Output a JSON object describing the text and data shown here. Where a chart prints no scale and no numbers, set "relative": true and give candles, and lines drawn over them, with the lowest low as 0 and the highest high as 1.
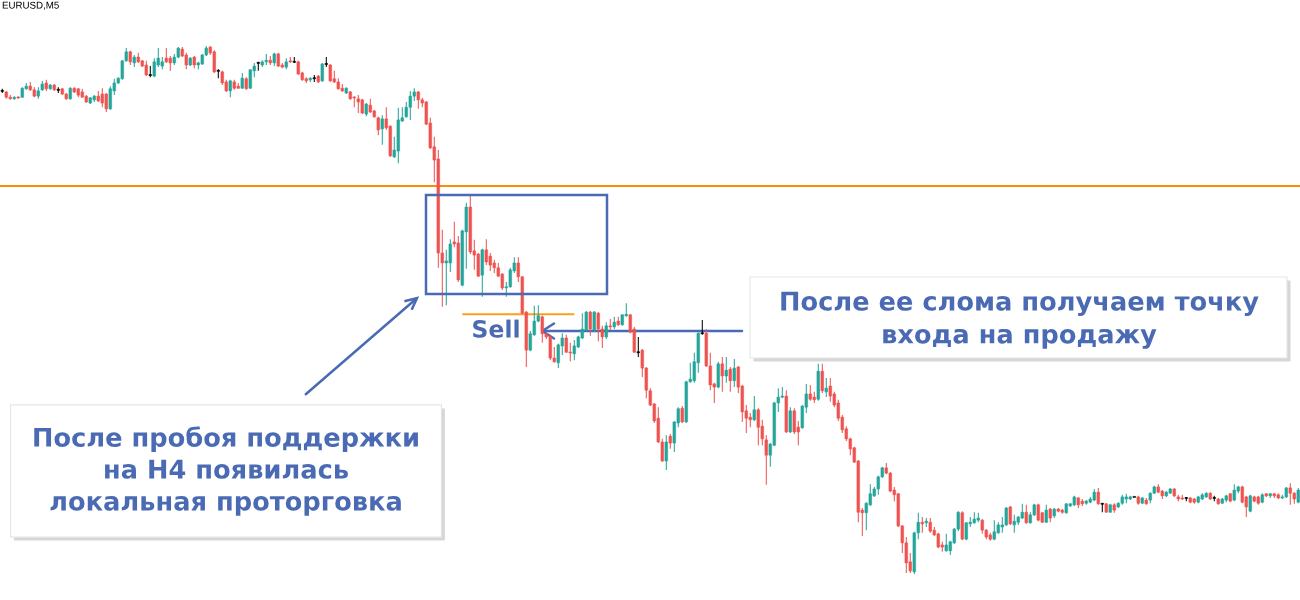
{
  "chart_data": {
    "type": "candlestick",
    "title": "EURUSD,M5",
    "relative": true,
    "categories": [
      null,
      null,
      null,
      null,
      null,
      null,
      null,
      null,
      null,
      null,
      null,
      null,
      null,
      null,
      null,
      null,
      null,
      null,
      null,
      null,
      null,
      null,
      null,
      null,
      null,
      null,
      null,
      null,
      null,
      null,
      null,
      null,
      null,
      null,
      null,
      null,
      null,
      null,
      null,
      null,
      null,
      null,
      null,
      null,
      null,
      null,
      null,
      null,
      null,
      null,
      null,
      null,
      null,
      null,
      null,
      null,
      null,
      null,
      null,
      null,
      null,
      null,
      null,
      null,
      null,
      null,
      null,
      null,
      null,
      null,
      null,
      null,
      null,
      null,
      null,
      null,
      null,
      null,
      null,
      null,
      null,
      null,
      null,
      null,
      null,
      null,
      null,
      null,
      null,
      null,
      null,
      null,
      null,
      null,
      null,
      null,
      null,
      null,
      null,
      null,
      null,
      null,
      null,
      null,
      null,
      null,
      null,
      null,
      null,
      null,
      null,
      null,
      null,
      null,
      null,
      null,
      null,
      null,
      null,
      null,
      null,
      null,
      null,
      null,
      null,
      null,
      null,
      null,
      null,
      null,
      null,
      null,
      null,
      null,
      null,
      null,
      null,
      null,
      null,
      null,
      null,
      null,
      null,
      null,
      null,
      null,
      null,
      null,
      null,
      null,
      null,
      null,
      null,
      null,
      null,
      null,
      null,
      null,
      null,
      null,
      null,
      null,
      null,
      null,
      null,
      null,
      null,
      null,
      null,
      null,
      null,
      null,
      null,
      null,
      null,
      null,
      null,
      null,
      null,
      null,
      null,
      null,
      null,
      null,
      null,
      null,
      null,
      null,
      null,
      null,
      null,
      null,
      null,
      null,
      null,
      null,
      null,
      null,
      null,
      null,
      null,
      null,
      null,
      null,
      null,
      null,
      null,
      null,
      null,
      null,
      null,
      null,
      null,
      null,
      null,
      null,
      null,
      null,
      null,
      null,
      null,
      null,
      null,
      null,
      null,
      null,
      null,
      null,
      null,
      null,
      null,
      null,
      null,
      null,
      null,
      null,
      null,
      null,
      null,
      null,
      null,
      null,
      null,
      null,
      null,
      null,
      null,
      null,
      null,
      null,
      null,
      null,
      null,
      null,
      null,
      null,
      null,
      null,
      null,
      null,
      null,
      null,
      null,
      null,
      null,
      null,
      null,
      null,
      null,
      null,
      null,
      null,
      null,
      null,
      null,
      null,
      null,
      null,
      null,
      null,
      null,
      null,
      null,
      null,
      null,
      null,
      null,
      null,
      null,
      null,
      null,
      null,
      null,
      null,
      null,
      null,
      null,
      null,
      null,
      null,
      null,
      null,
      null,
      null,
      null,
      null,
      null,
      null,
      null,
      null,
      null,
      null,
      null,
      null,
      null,
      null,
      null,
      null,
      null,
      null,
      null,
      null,
      null,
      null,
      null
    ],
    "ohlc": [
      [
        0.915,
        0.919,
        0.911,
        0.915
      ],
      [
        0.913,
        0.915,
        0.9,
        0.903
      ],
      [
        0.903,
        0.907,
        0.898,
        0.9
      ],
      [
        0.9,
        0.905,
        0.898,
        0.903
      ],
      [
        0.903,
        0.905,
        0.9,
        0.902
      ],
      [
        0.903,
        0.922,
        0.902,
        0.92
      ],
      [
        0.919,
        0.93,
        0.917,
        0.924
      ],
      [
        0.924,
        0.932,
        0.915,
        0.917
      ],
      [
        0.917,
        0.922,
        0.903,
        0.905
      ],
      [
        0.905,
        0.922,
        0.9,
        0.915
      ],
      [
        0.917,
        0.934,
        0.915,
        0.928
      ],
      [
        0.93,
        0.936,
        0.915,
        0.919
      ],
      [
        0.919,
        0.928,
        0.917,
        0.926
      ],
      [
        0.926,
        0.928,
        0.915,
        0.917
      ],
      [
        0.917,
        0.922,
        0.911,
        0.917
      ],
      [
        0.919,
        0.92,
        0.907,
        0.909
      ],
      [
        0.909,
        0.911,
        0.898,
        0.9
      ],
      [
        0.9,
        0.922,
        0.898,
        0.92
      ],
      [
        0.92,
        0.922,
        0.911,
        0.913
      ],
      [
        0.919,
        0.92,
        0.903,
        0.907
      ],
      [
        0.913,
        0.919,
        0.902,
        0.903
      ],
      [
        0.905,
        0.907,
        0.892,
        0.894
      ],
      [
        0.892,
        0.903,
        0.89,
        0.902
      ],
      [
        0.898,
        0.907,
        0.894,
        0.905
      ],
      [
        0.905,
        0.915,
        0.894,
        0.896
      ],
      [
        0.909,
        0.92,
        0.884,
        0.892
      ],
      [
        0.909,
        0.911,
        0.875,
        0.881
      ],
      [
        0.881,
        0.924,
        0.879,
        0.919
      ],
      [
        0.915,
        0.938,
        0.907,
        0.93
      ],
      [
        0.93,
        0.941,
        0.928,
        0.939
      ],
      [
        0.938,
        0.973,
        0.936,
        0.972
      ],
      [
        0.972,
        0.996,
        0.97,
        0.989
      ],
      [
        0.989,
        0.991,
        0.964,
        0.97
      ],
      [
        0.968,
        0.983,
        0.96,
        0.979
      ],
      [
        0.979,
        0.987,
        0.968,
        0.97
      ],
      [
        0.972,
        0.973,
        0.96,
        0.962
      ],
      [
        0.964,
        0.972,
        0.943,
        0.945
      ],
      [
        0.945,
        0.962,
        0.941,
        0.945
      ],
      [
        0.943,
        0.977,
        0.941,
        0.97
      ],
      [
        0.964,
        0.996,
        0.96,
        0.977
      ],
      [
        0.962,
        0.979,
        0.956,
        0.97
      ],
      [
        0.977,
        0.996,
        0.968,
        0.97
      ],
      [
        0.977,
        0.981,
        0.953,
        0.968
      ],
      [
        0.968,
        0.985,
        0.964,
        0.979
      ],
      [
        0.979,
        0.998,
        0.977,
        0.996
      ],
      [
        0.994,
        0.998,
        0.979,
        0.981
      ],
      [
        0.983,
        0.987,
        0.956,
        0.964
      ],
      [
        0.964,
        0.979,
        0.962,
        0.977
      ],
      [
        0.979,
        0.981,
        0.958,
        0.964
      ],
      [
        0.964,
        0.97,
        0.956,
        0.968
      ],
      [
        0.966,
        0.985,
        0.964,
        0.983
      ],
      [
        0.983,
        1.0,
        0.981,
        0.996
      ],
      [
        0.998,
        1.0,
        0.983,
        0.987
      ],
      [
        0.989,
        0.992,
        0.949,
        0.951
      ],
      [
        0.953,
        0.956,
        0.939,
        0.953
      ],
      [
        0.951,
        0.953,
        0.926,
        0.93
      ],
      [
        0.932,
        0.936,
        0.913,
        0.915
      ],
      [
        0.915,
        0.936,
        0.903,
        0.934
      ],
      [
        0.932,
        0.936,
        0.917,
        0.92
      ],
      [
        0.924,
        0.93,
        0.919,
        0.92
      ],
      [
        0.92,
        0.949,
        0.919,
        0.939
      ],
      [
        0.938,
        0.941,
        0.917,
        0.919
      ],
      [
        0.92,
        0.956,
        0.919,
        0.955
      ],
      [
        0.953,
        0.968,
        0.941,
        0.962
      ],
      [
        0.968,
        0.97,
        0.953,
        0.968
      ],
      [
        0.964,
        0.973,
        0.96,
        0.97
      ],
      [
        0.97,
        0.985,
        0.964,
        0.973
      ],
      [
        0.973,
        0.981,
        0.964,
        0.968
      ],
      [
        0.968,
        0.987,
        0.962,
        0.985
      ],
      [
        0.985,
        0.987,
        0.96,
        0.962
      ],
      [
        0.964,
        0.968,
        0.958,
        0.96
      ],
      [
        0.96,
        0.977,
        0.956,
        0.97
      ],
      [
        0.972,
        0.979,
        0.968,
        0.97
      ],
      [
        0.97,
        0.979,
        0.968,
        0.97
      ],
      [
        0.97,
        0.972,
        0.945,
        0.947
      ],
      [
        0.949,
        0.951,
        0.934,
        0.936
      ],
      [
        0.938,
        0.941,
        0.93,
        0.934
      ],
      [
        0.936,
        0.941,
        0.932,
        0.939
      ],
      [
        0.939,
        0.945,
        0.932,
        0.939
      ],
      [
        0.943,
        0.945,
        0.93,
        0.932
      ],
      [
        0.934,
        0.968,
        0.932,
        0.966
      ],
      [
        0.966,
        0.979,
        0.96,
        0.966
      ],
      [
        0.964,
        0.966,
        0.932,
        0.934
      ],
      [
        0.938,
        0.953,
        0.93,
        0.932
      ],
      [
        0.932,
        0.939,
        0.917,
        0.919
      ],
      [
        0.92,
        0.928,
        0.913,
        0.915
      ],
      [
        0.911,
        0.922,
        0.909,
        0.92
      ],
      [
        0.913,
        0.915,
        0.898,
        0.9
      ],
      [
        0.903,
        0.905,
        0.884,
        0.902
      ],
      [
        0.9,
        0.907,
        0.873,
        0.894
      ],
      [
        0.898,
        0.9,
        0.871,
        0.873
      ],
      [
        0.871,
        0.892,
        0.867,
        0.89
      ],
      [
        0.888,
        0.9,
        0.873,
        0.875
      ],
      [
        0.877,
        0.879,
        0.864,
        0.866
      ],
      [
        0.864,
        0.866,
        0.831,
        0.841
      ],
      [
        0.843,
        0.869,
        0.813,
        0.862
      ],
      [
        0.862,
        0.884,
        0.841,
        0.845
      ],
      [
        0.848,
        0.85,
        0.79,
        0.792
      ],
      [
        0.79,
        0.828,
        0.788,
        0.803
      ],
      [
        0.801,
        0.883,
        0.778,
        0.86
      ],
      [
        0.858,
        0.884,
        0.856,
        0.864
      ],
      [
        0.866,
        0.894,
        0.864,
        0.884
      ],
      [
        0.884,
        0.915,
        0.86,
        0.905
      ],
      [
        0.905,
        0.92,
        0.896,
        0.913
      ],
      [
        0.913,
        0.915,
        0.881,
        0.898
      ],
      [
        0.898,
        0.902,
        0.884,
        0.892
      ],
      [
        0.894,
        0.896,
        0.85,
        0.852
      ],
      [
        0.854,
        0.864,
        0.805,
        0.807
      ],
      [
        0.809,
        0.828,
        0.742,
        0.784
      ],
      [
        0.786,
        0.803,
        0.58,
        0.608
      ],
      [
        0.608,
        0.652,
        0.506,
        0.589
      ],
      [
        0.589,
        0.614,
        0.509,
        0.593
      ],
      [
        0.589,
        0.634,
        0.572,
        0.625
      ],
      [
        0.629,
        0.667,
        0.619,
        0.625
      ],
      [
        0.627,
        0.64,
        0.553,
        0.557
      ],
      [
        0.547,
        0.652,
        0.545,
        0.65
      ],
      [
        0.648,
        0.703,
        0.578,
        0.695
      ],
      [
        0.695,
        0.716,
        0.606,
        0.61
      ],
      [
        0.612,
        0.633,
        0.576,
        0.604
      ],
      [
        0.606,
        0.608,
        0.563,
        0.564
      ],
      [
        0.566,
        0.616,
        0.525,
        0.614
      ],
      [
        0.614,
        0.634,
        0.585,
        0.591
      ],
      [
        0.602,
        0.608,
        0.574,
        0.585
      ],
      [
        0.589,
        0.595,
        0.57,
        0.58
      ],
      [
        0.58,
        0.589,
        0.563,
        0.564
      ],
      [
        0.568,
        0.57,
        0.538,
        0.542
      ],
      [
        0.542,
        0.553,
        0.525,
        0.544
      ],
      [
        0.544,
        0.58,
        0.542,
        0.576
      ],
      [
        0.574,
        0.6,
        0.57,
        0.589
      ],
      [
        0.589,
        0.6,
        0.553,
        0.563
      ],
      [
        0.563,
        0.564,
        0.492,
        0.494
      ],
      [
        0.496,
        0.498,
        0.392,
        0.424
      ],
      [
        0.424,
        0.46,
        0.422,
        0.455
      ],
      [
        0.453,
        0.508,
        0.451,
        0.479
      ],
      [
        0.479,
        0.509,
        0.477,
        0.489
      ],
      [
        0.487,
        0.489,
        0.438,
        0.455
      ],
      [
        0.455,
        0.458,
        0.445,
        0.449
      ],
      [
        0.449,
        0.453,
        0.405,
        0.409
      ],
      [
        0.409,
        0.43,
        0.4,
        0.402
      ],
      [
        0.4,
        0.436,
        0.39,
        0.434
      ],
      [
        0.432,
        0.456,
        0.415,
        0.447
      ],
      [
        0.447,
        0.453,
        0.419,
        0.42
      ],
      [
        0.42,
        0.438,
        0.403,
        0.419
      ],
      [
        0.417,
        0.443,
        0.405,
        0.432
      ],
      [
        0.43,
        0.451,
        0.428,
        0.449
      ],
      [
        0.447,
        0.494,
        0.445,
        0.464
      ],
      [
        0.462,
        0.498,
        0.46,
        0.496
      ],
      [
        0.496,
        0.498,
        0.451,
        0.464
      ],
      [
        0.462,
        0.498,
        0.458,
        0.496
      ],
      [
        0.494,
        0.496,
        0.441,
        0.464
      ],
      [
        0.464,
        0.47,
        0.428,
        0.449
      ],
      [
        0.449,
        0.477,
        0.445,
        0.47
      ],
      [
        0.47,
        0.483,
        0.462,
        0.468
      ],
      [
        0.468,
        0.487,
        0.464,
        0.477
      ],
      [
        0.479,
        0.487,
        0.47,
        0.472
      ],
      [
        0.472,
        0.492,
        0.47,
        0.491
      ],
      [
        0.489,
        0.513,
        0.487,
        0.492
      ],
      [
        0.491,
        0.492,
        0.456,
        0.458
      ],
      [
        0.464,
        0.468,
        0.419,
        0.42
      ],
      [
        0.42,
        0.449,
        0.411,
        0.42
      ],
      [
        0.424,
        0.426,
        0.373,
        0.39
      ],
      [
        0.39,
        0.392,
        0.333,
        0.348
      ],
      [
        0.347,
        0.352,
        0.318,
        0.32
      ],
      [
        0.322,
        0.324,
        0.286,
        0.29
      ],
      [
        0.295,
        0.316,
        0.248,
        0.25
      ],
      [
        0.25,
        0.256,
        0.212,
        0.214
      ],
      [
        0.214,
        0.263,
        0.197,
        0.25
      ],
      [
        0.261,
        0.265,
        0.237,
        0.248
      ],
      [
        0.248,
        0.29,
        0.231,
        0.288
      ],
      [
        0.286,
        0.316,
        0.278,
        0.313
      ],
      [
        0.314,
        0.318,
        0.286,
        0.288
      ],
      [
        0.288,
        0.366,
        0.286,
        0.364
      ],
      [
        0.364,
        0.4,
        0.362,
        0.369
      ],
      [
        0.366,
        0.419,
        0.362,
        0.402
      ],
      [
        0.4,
        0.458,
        0.381,
        0.456
      ],
      [
        0.456,
        0.481,
        0.453,
        0.456
      ],
      [
        0.456,
        0.464,
        0.392,
        0.394
      ],
      [
        0.394,
        0.419,
        0.348,
        0.358
      ],
      [
        0.36,
        0.362,
        0.324,
        0.354
      ],
      [
        0.354,
        0.402,
        0.352,
        0.398
      ],
      [
        0.398,
        0.411,
        0.345,
        0.375
      ],
      [
        0.375,
        0.411,
        0.362,
        0.386
      ],
      [
        0.388,
        0.392,
        0.345,
        0.366
      ],
      [
        0.366,
        0.407,
        0.354,
        0.39
      ],
      [
        0.392,
        0.394,
        0.343,
        0.354
      ],
      [
        0.356,
        0.358,
        0.288,
        0.307
      ],
      [
        0.309,
        0.32,
        0.267,
        0.295
      ],
      [
        0.297,
        0.305,
        0.278,
        0.292
      ],
      [
        0.292,
        0.337,
        0.29,
        0.311
      ],
      [
        0.311,
        0.314,
        0.244,
        0.278
      ],
      [
        0.28,
        0.292,
        0.244,
        0.256
      ],
      [
        0.254,
        0.263,
        0.169,
        0.225
      ],
      [
        0.225,
        0.248,
        0.203,
        0.246
      ],
      [
        0.244,
        0.326,
        0.242,
        0.324
      ],
      [
        0.324,
        0.352,
        0.307,
        0.335
      ],
      [
        0.335,
        0.354,
        0.333,
        0.337
      ],
      [
        0.337,
        0.348,
        0.267,
        0.269
      ],
      [
        0.269,
        0.316,
        0.267,
        0.309
      ],
      [
        0.309,
        0.314,
        0.265,
        0.269
      ],
      [
        0.278,
        0.29,
        0.244,
        0.269
      ],
      [
        0.277,
        0.32,
        0.275,
        0.318
      ],
      [
        0.316,
        0.36,
        0.305,
        0.341
      ],
      [
        0.341,
        0.358,
        0.328,
        0.331
      ],
      [
        0.335,
        0.345,
        0.324,
        0.33
      ],
      [
        0.331,
        0.398,
        0.328,
        0.384
      ],
      [
        0.384,
        0.398,
        0.343,
        0.347
      ],
      [
        0.345,
        0.371,
        0.335,
        0.352
      ],
      [
        0.356,
        0.371,
        0.326,
        0.337
      ],
      [
        0.341,
        0.345,
        0.316,
        0.32
      ],
      [
        0.324,
        0.33,
        0.29,
        0.295
      ],
      [
        0.297,
        0.301,
        0.267,
        0.273
      ],
      [
        0.275,
        0.28,
        0.252,
        0.256
      ],
      [
        0.256,
        0.258,
        0.225,
        0.237
      ],
      [
        0.239,
        0.241,
        0.21,
        0.212
      ],
      [
        0.214,
        0.216,
        0.098,
        0.117
      ],
      [
        0.121,
        0.125,
        0.072,
        0.116
      ],
      [
        0.116,
        0.136,
        0.083,
        0.134
      ],
      [
        0.131,
        0.17,
        0.129,
        0.152
      ],
      [
        0.148,
        0.165,
        0.146,
        0.161
      ],
      [
        0.161,
        0.186,
        0.15,
        0.184
      ],
      [
        0.184,
        0.203,
        0.182,
        0.201
      ],
      [
        0.201,
        0.21,
        0.189,
        0.191
      ],
      [
        0.191,
        0.193,
        0.155,
        0.157
      ],
      [
        0.159,
        0.165,
        0.138,
        0.15
      ],
      [
        0.152,
        0.153,
        0.089,
        0.091
      ],
      [
        0.091,
        0.093,
        0.04,
        0.059
      ],
      [
        0.059,
        0.07,
        0.002,
        0.021
      ],
      [
        0.023,
        0.04,
        0.002,
        0.006
      ],
      [
        0.004,
        0.08,
        0.0,
        0.078
      ],
      [
        0.078,
        0.116,
        0.066,
        0.098
      ],
      [
        0.098,
        0.108,
        0.078,
        0.095
      ],
      [
        0.097,
        0.106,
        0.089,
        0.1
      ],
      [
        0.098,
        0.106,
        0.078,
        0.081
      ],
      [
        0.083,
        0.089,
        0.072,
        0.074
      ],
      [
        0.076,
        0.078,
        0.049,
        0.051
      ],
      [
        0.055,
        0.061,
        0.042,
        0.051
      ],
      [
        0.044,
        0.076,
        0.042,
        0.055
      ],
      [
        0.044,
        0.063,
        0.036,
        0.061
      ],
      [
        0.059,
        0.087,
        0.057,
        0.085
      ],
      [
        0.085,
        0.119,
        0.081,
        0.117
      ],
      [
        0.116,
        0.119,
        0.064,
        0.066
      ],
      [
        0.066,
        0.098,
        0.064,
        0.097
      ],
      [
        0.095,
        0.108,
        0.089,
        0.098
      ],
      [
        0.097,
        0.117,
        0.095,
        0.104
      ],
      [
        0.102,
        0.116,
        0.098,
        0.106
      ],
      [
        0.102,
        0.104,
        0.076,
        0.083
      ],
      [
        0.083,
        0.085,
        0.066,
        0.07
      ],
      [
        0.074,
        0.078,
        0.063,
        0.066
      ],
      [
        0.066,
        0.102,
        0.064,
        0.08
      ],
      [
        0.078,
        0.098,
        0.076,
        0.093
      ],
      [
        0.089,
        0.108,
        0.078,
        0.093
      ],
      [
        0.093,
        0.127,
        0.091,
        0.125
      ],
      [
        0.127,
        0.129,
        0.093,
        0.095
      ],
      [
        0.093,
        0.112,
        0.078,
        0.1
      ],
      [
        0.098,
        0.11,
        0.093,
        0.108
      ],
      [
        0.106,
        0.133,
        0.104,
        0.117
      ],
      [
        0.117,
        0.131,
        0.095,
        0.097
      ],
      [
        0.097,
        0.117,
        0.095,
        0.112
      ],
      [
        0.112,
        0.133,
        0.11,
        0.131
      ],
      [
        0.131,
        0.133,
        0.1,
        0.102
      ],
      [
        0.116,
        0.117,
        0.097,
        0.098
      ],
      [
        0.098,
        0.131,
        0.097,
        0.121
      ],
      [
        0.123,
        0.125,
        0.098,
        0.106
      ],
      [
        0.11,
        0.125,
        0.106,
        0.123
      ],
      [
        0.123,
        0.125,
        0.117,
        0.119
      ],
      [
        0.121,
        0.123,
        0.114,
        0.117
      ],
      [
        0.116,
        0.134,
        0.114,
        0.133
      ],
      [
        0.129,
        0.134,
        0.127,
        0.133
      ],
      [
        0.131,
        0.148,
        0.129,
        0.146
      ],
      [
        0.144,
        0.146,
        0.125,
        0.131
      ],
      [
        0.138,
        0.142,
        0.129,
        0.133
      ],
      [
        0.134,
        0.14,
        0.131,
        0.138
      ],
      [
        0.136,
        0.146,
        0.134,
        0.142
      ],
      [
        0.14,
        0.161,
        0.138,
        0.155
      ],
      [
        0.155,
        0.163,
        0.131,
        0.133
      ],
      [
        0.133,
        0.134,
        0.117,
        0.133
      ],
      [
        0.133,
        0.134,
        0.116,
        0.117
      ],
      [
        0.117,
        0.133,
        0.116,
        0.131
      ],
      [
        0.131,
        0.134,
        0.116,
        0.121
      ],
      [
        0.127,
        0.136,
        0.125,
        0.134
      ],
      [
        0.134,
        0.15,
        0.131,
        0.146
      ],
      [
        0.142,
        0.152,
        0.134,
        0.146
      ],
      [
        0.142,
        0.148,
        0.14,
        0.146
      ],
      [
        0.146,
        0.146,
        0.146,
        0.146
      ],
      [
        0.146,
        0.148,
        0.131,
        0.134
      ],
      [
        0.134,
        0.146,
        0.133,
        0.144
      ],
      [
        0.14,
        0.144,
        0.131,
        0.133
      ],
      [
        0.14,
        0.155,
        0.134,
        0.153
      ],
      [
        0.153,
        0.167,
        0.152,
        0.165
      ],
      [
        0.165,
        0.17,
        0.153,
        0.155
      ],
      [
        0.157,
        0.159,
        0.142,
        0.148
      ],
      [
        0.148,
        0.157,
        0.146,
        0.155
      ],
      [
        0.153,
        0.163,
        0.152,
        0.161
      ],
      [
        0.161,
        0.163,
        0.146,
        0.148
      ],
      [
        0.146,
        0.15,
        0.138,
        0.142
      ],
      [
        0.144,
        0.15,
        0.14,
        0.142
      ],
      [
        0.144,
        0.146,
        0.138,
        0.144
      ],
      [
        0.144,
        0.146,
        0.134,
        0.136
      ],
      [
        0.142,
        0.144,
        0.133,
        0.136
      ],
      [
        0.136,
        0.148,
        0.134,
        0.146
      ],
      [
        0.142,
        0.153,
        0.14,
        0.15
      ],
      [
        0.146,
        0.155,
        0.144,
        0.153
      ],
      [
        0.153,
        0.155,
        0.14,
        0.142
      ],
      [
        0.144,
        0.148,
        0.138,
        0.144
      ],
      [
        0.142,
        0.144,
        0.131,
        0.133
      ],
      [
        0.134,
        0.144,
        0.133,
        0.142
      ],
      [
        0.14,
        0.15,
        0.136,
        0.148
      ],
      [
        0.152,
        0.153,
        0.136,
        0.138
      ],
      [
        0.14,
        0.17,
        0.138,
        0.159
      ],
      [
        0.157,
        0.167,
        0.153,
        0.165
      ],
      [
        0.165,
        0.167,
        0.134,
        0.136
      ],
      [
        0.146,
        0.148,
        0.108,
        0.127
      ],
      [
        0.119,
        0.15,
        0.117,
        0.148
      ],
      [
        0.146,
        0.148,
        0.136,
        0.138
      ],
      [
        0.146,
        0.148,
        0.131,
        0.134
      ],
      [
        0.136,
        0.153,
        0.134,
        0.15
      ],
      [
        0.152,
        0.153,
        0.146,
        0.148
      ],
      [
        0.148,
        0.153,
        0.144,
        0.152
      ],
      [
        0.152,
        0.153,
        0.144,
        0.148
      ],
      [
        0.15,
        0.153,
        0.142,
        0.144
      ],
      [
        0.144,
        0.15,
        0.142,
        0.146
      ],
      [
        0.146,
        0.165,
        0.144,
        0.163
      ],
      [
        0.163,
        0.172,
        0.131,
        0.153
      ],
      [
        0.153,
        0.155,
        0.133,
        0.142
      ],
      [
        0.136,
        0.163,
        0.134,
        0.159
      ]
    ],
    "colors": [
      "#000000",
      "#ef5350",
      "#ef5350",
      "#26a69a",
      "#ef5350",
      "#26a69a",
      "#26a69a",
      "#ef5350",
      "#ef5350",
      "#26a69a",
      "#26a69a",
      "#ef5350",
      "#26a69a",
      "#ef5350",
      "#000000",
      "#ef5350",
      "#ef5350",
      "#26a69a",
      "#ef5350",
      "#ef5350",
      "#ef5350",
      "#ef5350",
      "#26a69a",
      "#26a69a",
      "#ef5350",
      "#ef5350",
      "#ef5350",
      "#26a69a",
      "#26a69a",
      "#26a69a",
      "#26a69a",
      "#26a69a",
      "#ef5350",
      "#26a69a",
      "#ef5350",
      "#ef5350",
      "#ef5350",
      "#000000",
      "#26a69a",
      "#26a69a",
      "#26a69a",
      "#ef5350",
      "#ef5350",
      "#26a69a",
      "#26a69a",
      "#ef5350",
      "#ef5350",
      "#26a69a",
      "#ef5350",
      "#26a69a",
      "#26a69a",
      "#26a69a",
      "#ef5350",
      "#ef5350",
      "#000000",
      "#ef5350",
      "#ef5350",
      "#26a69a",
      "#ef5350",
      "#ef5350",
      "#26a69a",
      "#ef5350",
      "#26a69a",
      "#26a69a",
      "#000000",
      "#26a69a",
      "#26a69a",
      "#ef5350",
      "#26a69a",
      "#ef5350",
      "#ef5350",
      "#26a69a",
      "#ef5350",
      "#000000",
      "#ef5350",
      "#ef5350",
      "#ef5350",
      "#26a69a",
      "#000000",
      "#ef5350",
      "#26a69a",
      "#000000",
      "#ef5350",
      "#ef5350",
      "#ef5350",
      "#ef5350",
      "#26a69a",
      "#ef5350",
      "#ef5350",
      "#ef5350",
      "#ef5350",
      "#26a69a",
      "#ef5350",
      "#ef5350",
      "#ef5350",
      "#26a69a",
      "#ef5350",
      "#ef5350",
      "#26a69a",
      "#26a69a",
      "#26a69a",
      "#26a69a",
      "#26a69a",
      "#26a69a",
      "#ef5350",
      "#ef5350",
      "#ef5350",
      "#ef5350",
      "#ef5350",
      "#ef5350",
      "#ef5350",
      "#26a69a",
      "#26a69a",
      "#ef5350",
      "#ef5350",
      "#26a69a",
      "#26a69a",
      "#ef5350",
      "#ef5350",
      "#ef5350",
      "#26a69a",
      "#ef5350",
      "#ef5350",
      "#ef5350",
      "#ef5350",
      "#ef5350",
      "#26a69a",
      "#26a69a",
      "#26a69a",
      "#ef5350",
      "#ef5350",
      "#ef5350",
      "#26a69a",
      "#26a69a",
      "#26a69a",
      "#ef5350",
      "#ef5350",
      "#ef5350",
      "#ef5350",
      "#26a69a",
      "#26a69a",
      "#ef5350",
      "#ef5350",
      "#26a69a",
      "#26a69a",
      "#26a69a",
      "#26a69a",
      "#ef5350",
      "#26a69a",
      "#ef5350",
      "#ef5350",
      "#26a69a",
      "#ef5350",
      "#26a69a",
      "#ef5350",
      "#26a69a",
      "#26a69a",
      "#ef5350",
      "#ef5350",
      "#000000",
      "#ef5350",
      "#ef5350",
      "#ef5350",
      "#ef5350",
      "#ef5350",
      "#ef5350",
      "#26a69a",
      "#ef5350",
      "#26a69a",
      "#26a69a",
      "#ef5350",
      "#26a69a",
      "#26a69a",
      "#26a69a",
      "#26a69a",
      "#000000",
      "#ef5350",
      "#ef5350",
      "#ef5350",
      "#26a69a",
      "#ef5350",
      "#26a69a",
      "#ef5350",
      "#26a69a",
      "#ef5350",
      "#ef5350",
      "#ef5350",
      "#ef5350",
      "#26a69a",
      "#ef5350",
      "#ef5350",
      "#ef5350",
      "#26a69a",
      "#26a69a",
      "#26a69a",
      "#26a69a",
      "#ef5350",
      "#26a69a",
      "#ef5350",
      "#ef5350",
      "#26a69a",
      "#26a69a",
      "#ef5350",
      "#ef5350",
      "#26a69a",
      "#ef5350",
      "#26a69a",
      "#ef5350",
      "#ef5350",
      "#ef5350",
      "#ef5350",
      "#ef5350",
      "#ef5350",
      "#ef5350",
      "#ef5350",
      "#ef5350",
      "#26a69a",
      "#26a69a",
      "#26a69a",
      "#26a69a",
      "#26a69a",
      "#ef5350",
      "#ef5350",
      "#ef5350",
      "#ef5350",
      "#ef5350",
      "#ef5350",
      "#ef5350",
      "#26a69a",
      "#26a69a",
      "#ef5350",
      "#26a69a",
      "#ef5350",
      "#ef5350",
      "#ef5350",
      "#ef5350",
      "#26a69a",
      "#26a69a",
      "#26a69a",
      "#26a69a",
      "#ef5350",
      "#26a69a",
      "#26a69a",
      "#26a69a",
      "#26a69a",
      "#ef5350",
      "#ef5350",
      "#ef5350",
      "#26a69a",
      "#26a69a",
      "#26a69a",
      "#26a69a",
      "#ef5350",
      "#26a69a",
      "#26a69a",
      "#26a69a",
      "#ef5350",
      "#26a69a",
      "#26a69a",
      "#ef5350",
      "#ef5350",
      "#26a69a",
      "#ef5350",
      "#26a69a",
      "#ef5350",
      "#ef5350",
      "#26a69a",
      "#26a69a",
      "#26a69a",
      "#ef5350",
      "#ef5350",
      "#26a69a",
      "#26a69a",
      "#26a69a",
      "#ef5350",
      "#000000",
      "#ef5350",
      "#26a69a",
      "#ef5350",
      "#26a69a",
      "#26a69a",
      "#26a69a",
      "#26a69a",
      "#000000",
      "#ef5350",
      "#26a69a",
      "#ef5350",
      "#26a69a",
      "#26a69a",
      "#ef5350",
      "#ef5350",
      "#26a69a",
      "#26a69a",
      "#ef5350",
      "#ef5350",
      "#ef5350",
      "#000000",
      "#ef5350",
      "#ef5350",
      "#26a69a",
      "#26a69a",
      "#26a69a",
      "#ef5350",
      "#000000",
      "#ef5350",
      "#26a69a",
      "#26a69a",
      "#ef5350",
      "#26a69a",
      "#26a69a",
      "#ef5350",
      "#ef5350",
      "#26a69a",
      "#ef5350",
      "#ef5350",
      "#26a69a",
      "#ef5350",
      "#26a69a",
      "#ef5350",
      "#ef5350",
      "#26a69a",
      "#26a69a",
      "#ef5350",
      "#ef5350",
      "#26a69a"
    ],
    "series": [
      {
        "type": "line",
        "color": "#f9a11b",
        "values": [
          null,
          null,
          null,
          null,
          null,
          null,
          null,
          null,
          null,
          null,
          null,
          null,
          null,
          null,
          null,
          null,
          null,
          null,
          null,
          null,
          null,
          null,
          null,
          null,
          null,
          null,
          null,
          null,
          null,
          null,
          null,
          null,
          null,
          null,
          null,
          null,
          null,
          null,
          null,
          null,
          null,
          null,
          null,
          null,
          null,
          null,
          null,
          null,
          null,
          null,
          null,
          null,
          null,
          null,
          null,
          null,
          null,
          null,
          null,
          null,
          null,
          null,
          null,
          null,
          null,
          null,
          null,
          null,
          null,
          null,
          null,
          null,
          null,
          null,
          null,
          null,
          null,
          null,
          null,
          null,
          null,
          null,
          null,
          null,
          null,
          null,
          null,
          null,
          null,
          null,
          null,
          null,
          null,
          null,
          null,
          null,
          null,
          null,
          null,
          null,
          null,
          null,
          null,
          null,
          null,
          null,
          null,
          null,
          null,
          null,
          null,
          null,
          null,
          null,
          null,
          0.492,
          0.492,
          0.492,
          0.492,
          0.492,
          0.492,
          0.492,
          0.492,
          0.492,
          0.492,
          0.492,
          0.492,
          0.492,
          0.492,
          0.492,
          0.492,
          0.492,
          0.492,
          0.492,
          0.492,
          0.492,
          0.492,
          0.492,
          0.492,
          0.492,
          0.492,
          0.492,
          0.492,
          0.492,
          null,
          null,
          null,
          null,
          null,
          null,
          null,
          null,
          null,
          null,
          null,
          null,
          null,
          null,
          null,
          null,
          null,
          null,
          null,
          null,
          null,
          null,
          null,
          null,
          null,
          null,
          null,
          null,
          null,
          null,
          null,
          null,
          null,
          null,
          null,
          null,
          null,
          null,
          null,
          null,
          null,
          null,
          null,
          null,
          null,
          null,
          null,
          null,
          null,
          null,
          null,
          null,
          null,
          null,
          null,
          null,
          null,
          null,
          null,
          null,
          null,
          null,
          null,
          null,
          null,
          null,
          null,
          null,
          null,
          null,
          null,
          null,
          null,
          null,
          null,
          null,
          null,
          null,
          null,
          null,
          null,
          null,
          null,
          null,
          null,
          null,
          null,
          null,
          null,
          null,
          null,
          null,
          null,
          null,
          null,
          null,
          null,
          null,
          null,
          null,
          null,
          null,
          null,
          null,
          null,
          null,
          null,
          null,
          null,
          null,
          null,
          null,
          null,
          null,
          null,
          null,
          null,
          null,
          null,
          null,
          null,
          null,
          null,
          null,
          null,
          null,
          null,
          null,
          null,
          null,
          null,
          null,
          null,
          null,
          null,
          null,
          null,
          null,
          null,
          null,
          null,
          null,
          null,
          null,
          null,
          null,
          null,
          null,
          null,
          null,
          null,
          null,
          null,
          null,
          null,
          null,
          null,
          null,
          null,
          null,
          null,
          null,
          null,
          null,
          null,
          null,
          null,
          null,
          null,
          null,
          null,
          null,
          null,
          null,
          null,
          null,
          null,
          null,
          null,
          null,
          null
        ]
      }
    ],
    "ref_lines": [
      {
        "axis": "y",
        "value": 0.735,
        "color": "#ff8c00"
      }
    ],
    "annotations": [
      "Sell",
      "После пробоя поддержки\nна H4 появилась\nлокальная проторговка",
      "После ее слома получаем точку\nвхода на продажу"
    ]
  }
}
